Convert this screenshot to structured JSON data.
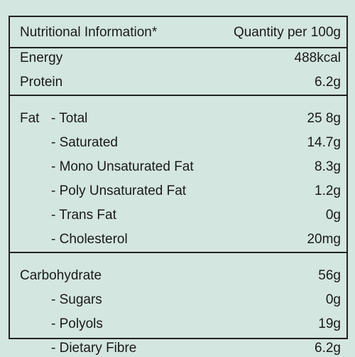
{
  "header": {
    "title": "Nutritional Information*",
    "quantity": "Quantity per 100g"
  },
  "sections": [
    {
      "rows": [
        {
          "label": "Energy",
          "value": "488kcal"
        },
        {
          "label": "Protein",
          "value": "6.2g"
        }
      ]
    },
    {
      "rows": [
        {
          "label": "Fat",
          "sublabel": "- Total",
          "value": "25 8g"
        },
        {
          "sublabel": "- Saturated",
          "value": "14.7g"
        },
        {
          "sublabel": "- Mono Unsaturated Fat",
          "value": "8.3g"
        },
        {
          "sublabel": "- Poly Unsaturated Fat",
          "value": "1.2g"
        },
        {
          "sublabel": "- Trans Fat",
          "value": "0g"
        },
        {
          "sublabel": "- Cholesterol",
          "value": "20mg"
        }
      ]
    },
    {
      "rows": [
        {
          "label": "Carbohydrate",
          "value": "56g"
        },
        {
          "sublabel": "- Sugars",
          "value": "0g"
        },
        {
          "sublabel": "- Polyols",
          "value": "19g"
        },
        {
          "sublabel": "- Dietary Fibre",
          "value": "6.2g"
        }
      ]
    }
  ]
}
